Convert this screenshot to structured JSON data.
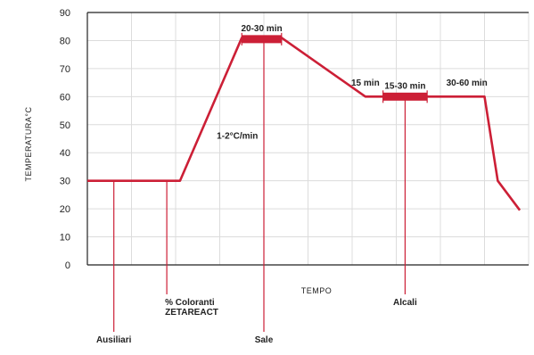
{
  "chart_data": {
    "type": "line",
    "title": "",
    "xlabel": "TEMPO",
    "ylabel": "TEMPERATURA°C",
    "ylim": [
      0,
      90
    ],
    "yticks": [
      0,
      10,
      20,
      30,
      40,
      50,
      60,
      70,
      80,
      90
    ],
    "grid": true,
    "colors": {
      "series": "#cc1f36",
      "grid": "#dcdcdc",
      "axis": "#222222"
    },
    "series": [
      {
        "x": [
          0,
          2.1,
          3.5,
          4.4,
          6.3,
          9,
          9.3,
          9.8
        ],
        "y": [
          30,
          30,
          81,
          81,
          60,
          60,
          30,
          19.5
        ]
      }
    ],
    "hold_bars": [
      {
        "x_start": 3.5,
        "x_end": 4.4,
        "y": 80.5,
        "label": "20-30 min"
      },
      {
        "x_start": 6.7,
        "x_end": 7.7,
        "y": 60,
        "label": "15-30 min"
      }
    ],
    "annotations": [
      {
        "text": "15 min",
        "x": 6.3,
        "y": 64
      },
      {
        "text": "30-60 min",
        "x": 8.6,
        "y": 64
      },
      {
        "text": "1-2°C/min",
        "x": 3.4,
        "y": 45
      }
    ],
    "markers": [
      {
        "label_lines": [
          "Ausiliari"
        ],
        "x": 0.6
      },
      {
        "label_lines": [
          "% Coloranti",
          "ZETAREACT"
        ],
        "x": 1.8
      },
      {
        "label_lines": [
          "Sale"
        ],
        "x": 4.0
      },
      {
        "label_lines": [
          "Alcali"
        ],
        "x": 7.2
      }
    ]
  }
}
